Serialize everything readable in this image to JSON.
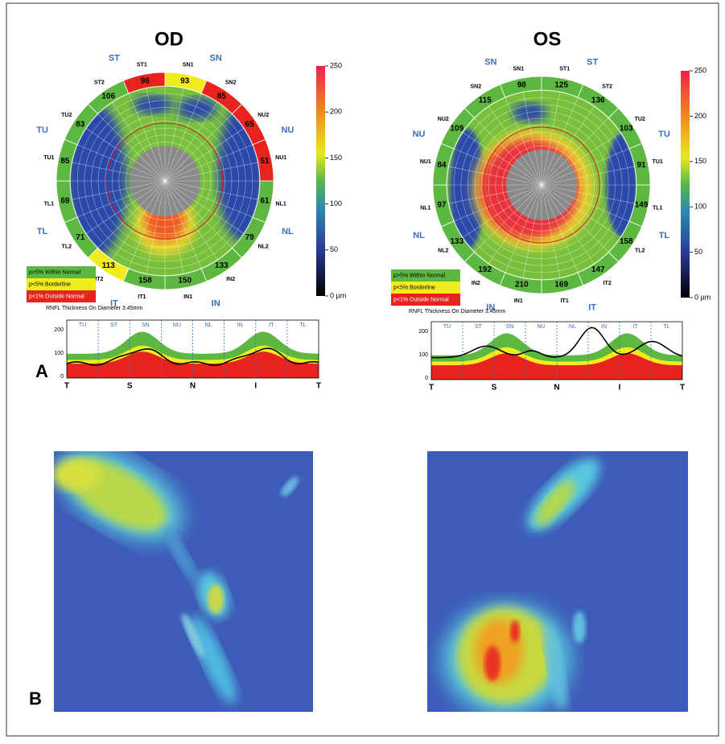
{
  "panel_a": {
    "label": "A",
    "eyes": [
      {
        "title": "OD",
        "regions": [
          "SN",
          "NU",
          "NL",
          "IN",
          "IT",
          "TL",
          "TU",
          "ST"
        ],
        "sectors": [
          {
            "code": "SN1",
            "value": 93,
            "color": "#f0ec1e"
          },
          {
            "code": "SN2",
            "value": 85,
            "color": "#e8231e"
          },
          {
            "code": "NU2",
            "value": 65,
            "color": "#e8231e"
          },
          {
            "code": "NU1",
            "value": 51,
            "color": "#e8231e"
          },
          {
            "code": "NL1",
            "value": 61,
            "color": "#5cb840"
          },
          {
            "code": "NL2",
            "value": 79,
            "color": "#5cb840"
          },
          {
            "code": "IN2",
            "value": 133,
            "color": "#5cb840"
          },
          {
            "code": "IN1",
            "value": 150,
            "color": "#5cb840"
          },
          {
            "code": "IT1",
            "value": 158,
            "color": "#5cb840"
          },
          {
            "code": "IT2",
            "value": 113,
            "color": "#f0ec1e"
          },
          {
            "code": "TL2",
            "value": 71,
            "color": "#5cb840"
          },
          {
            "code": "TL1",
            "value": 69,
            "color": "#5cb840"
          },
          {
            "code": "TU1",
            "value": 85,
            "color": "#5cb840"
          },
          {
            "code": "TU2",
            "value": 83,
            "color": "#5cb840"
          },
          {
            "code": "ST2",
            "value": 106,
            "color": "#5cb840"
          },
          {
            "code": "ST1",
            "value": 96,
            "color": "#e8231e"
          }
        ],
        "colorbar_ticks": [
          "250",
          "200",
          "150",
          "100",
          "50",
          "0 µm"
        ],
        "legend": [
          "p>5% Within Normal",
          "p<5% Borderline",
          "p<1% Outside Normal"
        ],
        "caption": "RNFL Thickness On Diameter 3.45mm",
        "tsnit": {
          "yticks": [
            "200",
            "100",
            "0"
          ],
          "sections": [
            "TU",
            "ST",
            "SN",
            "NU",
            "NL",
            "IN",
            "IT",
            "TL"
          ],
          "xlabels": [
            "T",
            "S",
            "N",
            "I",
            "T"
          ]
        }
      },
      {
        "title": "OS",
        "regions": [
          "ST",
          "TU",
          "TL",
          "IT",
          "IN",
          "NL",
          "NU",
          "SN"
        ],
        "sectors": [
          {
            "code": "ST1",
            "value": 125,
            "color": "#5cb840"
          },
          {
            "code": "ST2",
            "value": 136,
            "color": "#5cb840"
          },
          {
            "code": "TU2",
            "value": 103,
            "color": "#5cb840"
          },
          {
            "code": "TU1",
            "value": 91,
            "color": "#5cb840"
          },
          {
            "code": "TL1",
            "value": 149,
            "color": "#5cb840"
          },
          {
            "code": "TL2",
            "value": 158,
            "color": "#5cb840"
          },
          {
            "code": "IT2",
            "value": 147,
            "color": "#5cb840"
          },
          {
            "code": "IT1",
            "value": 169,
            "color": "#5cb840"
          },
          {
            "code": "IN1",
            "value": 210,
            "color": "#5cb840"
          },
          {
            "code": "IN2",
            "value": 192,
            "color": "#5cb840"
          },
          {
            "code": "NL2",
            "value": 133,
            "color": "#5cb840"
          },
          {
            "code": "NL1",
            "value": 97,
            "color": "#5cb840"
          },
          {
            "code": "NU1",
            "value": 84,
            "color": "#5cb840"
          },
          {
            "code": "NU2",
            "value": 109,
            "color": "#5cb840"
          },
          {
            "code": "SN2",
            "value": 115,
            "color": "#5cb840"
          },
          {
            "code": "SN1",
            "value": 98,
            "color": "#5cb840"
          }
        ],
        "colorbar_ticks": [
          "250",
          "200",
          "150",
          "100",
          "50",
          "0 µm"
        ],
        "legend": [
          "p>5% Within Normal",
          "p<5% Borderline",
          "p<1% Outside Normal"
        ],
        "caption": "RNFL Thickness On Diameter 3.45mm",
        "tsnit": {
          "yticks": [
            "200",
            "100",
            "0"
          ],
          "sections": [
            "TU",
            "ST",
            "SN",
            "NU",
            "NL",
            "IN",
            "IT",
            "TL"
          ],
          "xlabels": [
            "T",
            "S",
            "N",
            "I",
            "T"
          ]
        }
      }
    ]
  },
  "panel_b": {
    "label": "B"
  }
}
